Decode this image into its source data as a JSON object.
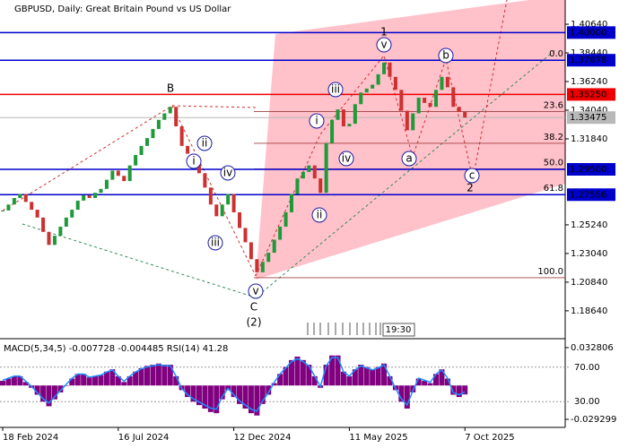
{
  "chart_data": {
    "type": "candlestick",
    "title": "GBPUSD, Daily:  Great Britain Pound vs US Dollar",
    "categories": [
      "18 Feb 2024",
      null,
      null,
      null,
      null,
      null,
      null,
      null,
      null,
      null,
      null,
      null,
      null,
      null,
      null,
      null,
      null,
      null,
      null,
      null,
      "16 Jul 2024",
      null,
      null,
      null,
      null,
      null,
      null,
      null,
      null,
      null,
      null,
      null,
      null,
      null,
      null,
      null,
      null,
      null,
      null,
      null,
      "12 Dec 2024",
      null,
      null,
      null,
      null,
      null,
      null,
      null,
      null,
      null,
      null,
      null,
      null,
      null,
      null,
      null,
      null,
      null,
      null,
      null,
      "11 May 2025",
      null,
      null,
      null,
      null,
      null,
      null,
      null,
      null,
      null,
      null,
      null,
      null,
      null,
      null,
      null,
      null,
      null,
      null,
      null,
      "7 Oct 2025"
    ],
    "values": [
      1.2634,
      1.268,
      1.273,
      1.276,
      1.27,
      1.264,
      1.258,
      1.247,
      1.237,
      1.244,
      1.251,
      1.258,
      1.264,
      1.271,
      1.275,
      1.273,
      1.277,
      1.28,
      1.287,
      1.294,
      1.29,
      1.286,
      1.298,
      1.306,
      1.313,
      1.319,
      1.326,
      1.333,
      1.338,
      1.343,
      1.328,
      1.313,
      1.307,
      1.301,
      1.292,
      1.281,
      1.268,
      1.259,
      1.268,
      1.276,
      1.262,
      1.25,
      1.239,
      1.226,
      1.216,
      1.224,
      1.231,
      1.241,
      1.251,
      1.262,
      1.276,
      1.288,
      1.293,
      1.298,
      1.288,
      1.277,
      1.315,
      1.333,
      1.341,
      1.328,
      1.33,
      1.345,
      1.354,
      1.357,
      1.36,
      1.368,
      1.377,
      1.366,
      1.356,
      1.34,
      1.325,
      1.338,
      1.35,
      1.346,
      1.343,
      1.356,
      1.366,
      1.358,
      1.343,
      1.339,
      1.33475
    ],
    "up_color": "#1f9a3a",
    "down_color": "#cc3030",
    "ylim": [
      1.165,
      1.425
    ],
    "yticks": [
      {
        "value": 1.4064,
        "label": "1.40640"
      },
      {
        "value": 1.3844,
        "label": "1.38440"
      },
      {
        "value": 1.3624,
        "label": "1.36240"
      },
      {
        "value": 1.3404,
        "label": "1.34040"
      },
      {
        "value": 1.3184,
        "label": "1.31840"
      },
      {
        "value": 1.2524,
        "label": "1.25240"
      },
      {
        "value": 1.2304,
        "label": "1.23040"
      },
      {
        "value": 1.2084,
        "label": "1.20840"
      },
      {
        "value": 1.1864,
        "label": "1.18640"
      }
    ],
    "levels": [
      {
        "value": 1.4,
        "label": "1.40000",
        "color": "#0000cc"
      },
      {
        "value": 1.37878,
        "label": "1.37878",
        "color": "#0000cc"
      },
      {
        "value": 1.3525,
        "label": "1.35250",
        "color": "#ee0000"
      },
      {
        "value": 1.33475,
        "label": "1.33475",
        "color": "#b8b8b8"
      },
      {
        "value": 1.295,
        "label": "1.29500",
        "color": "#0000cc"
      },
      {
        "value": 1.27556,
        "label": "1.27556",
        "color": "#0000cc"
      }
    ],
    "fib_levels": [
      {
        "value": 1.3788,
        "label": "0.0"
      },
      {
        "value": 1.3394,
        "label": "23.6"
      },
      {
        "value": 1.315,
        "label": "38.2"
      },
      {
        "value": 1.2953,
        "label": "50.0"
      },
      {
        "value": 1.2756,
        "label": "61.8"
      },
      {
        "value": 1.2118,
        "label": "100.0"
      }
    ],
    "wave_labels": [
      "B",
      "C",
      "(2)",
      "1",
      "2"
    ],
    "circled_labels": [
      "i",
      "ii",
      "iii",
      "iv",
      "v",
      "i",
      "ii",
      "iii",
      "iv",
      "v",
      "a",
      "b",
      "c"
    ],
    "time_label": "19:30",
    "indicator": {
      "label": "MACD(5,34,5) -0.007728 -0.004485 RSI(14) 41.28",
      "macd_color": "#800080",
      "rsi_color": "#1e90ff",
      "macd_lim": [
        -0.0363,
        0.0382
      ],
      "macd_ticks": [
        {
          "value": 0.032806,
          "label": "0.032806"
        },
        {
          "value": -0.029299,
          "label": "-0.029299"
        }
      ],
      "rsi_lim": [
        0,
        100
      ],
      "rsi_ticks": [
        {
          "value": 70,
          "label": "70.00"
        },
        {
          "value": 30,
          "label": "30.00"
        }
      ],
      "macd": [
        0.004,
        0.006,
        0.008,
        0.008,
        0.003,
        -0.002,
        -0.008,
        -0.014,
        -0.018,
        -0.012,
        -0.006,
        0.0,
        0.006,
        0.01,
        0.01,
        0.007,
        0.008,
        0.009,
        0.012,
        0.014,
        0.008,
        0.003,
        0.008,
        0.012,
        0.015,
        0.017,
        0.018,
        0.019,
        0.018,
        0.018,
        0.008,
        -0.004,
        -0.01,
        -0.014,
        -0.017,
        -0.02,
        -0.023,
        -0.024,
        -0.012,
        -0.004,
        -0.01,
        -0.016,
        -0.02,
        -0.024,
        -0.026,
        -0.016,
        -0.008,
        0.002,
        0.01,
        0.016,
        0.022,
        0.025,
        0.022,
        0.018,
        0.008,
        -0.002,
        0.018,
        0.026,
        0.026,
        0.012,
        0.008,
        0.014,
        0.018,
        0.016,
        0.014,
        0.016,
        0.019,
        0.008,
        -0.004,
        -0.014,
        -0.02,
        -0.006,
        0.006,
        0.004,
        0.002,
        0.01,
        0.014,
        0.006,
        -0.008,
        -0.01,
        -0.007728
      ],
      "rsi": [
        54.8,
        57.2,
        59.6,
        59.6,
        53.6,
        47.6,
        40.4,
        33.2,
        28.4,
        35.6,
        42.8,
        50,
        57.2,
        62,
        62,
        58.4,
        59.6,
        60.8,
        64.4,
        66.8,
        59.6,
        53.6,
        59.6,
        64.4,
        68,
        70.4,
        71.6,
        72.8,
        71.6,
        71.6,
        59.6,
        45.2,
        38,
        33.2,
        29.6,
        26,
        22.4,
        21.2,
        35.6,
        45.2,
        38,
        30.8,
        26,
        21.2,
        18.8,
        30.8,
        40.4,
        52.4,
        62,
        69.2,
        76.4,
        80,
        76.4,
        71.6,
        59.6,
        47.6,
        71.6,
        81.2,
        81.2,
        64.4,
        59.6,
        66.8,
        71.6,
        69.2,
        66.8,
        69.2,
        72.8,
        59.6,
        45.2,
        33.2,
        26,
        42.8,
        57.2,
        54.8,
        52.4,
        62,
        66.8,
        57.2,
        40.4,
        38,
        41.28
      ]
    }
  }
}
